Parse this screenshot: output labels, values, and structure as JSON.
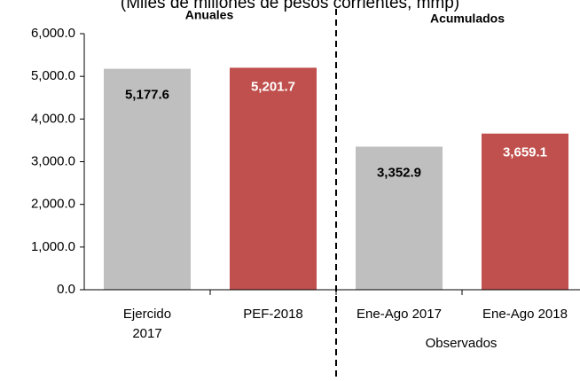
{
  "chart_data": {
    "type": "bar",
    "title": "(Miles de millones de pesos corrientes, mmp)",
    "section_labels": [
      "Anuales",
      "Acumulados"
    ],
    "group_label": "Observados",
    "categories": [
      "Ejercido\n2017",
      "PEF-2018",
      "Ene-Ago 2017",
      "Ene-Ago 2018"
    ],
    "values": [
      5177.6,
      5201.7,
      3352.9,
      3659.1
    ],
    "value_labels": [
      "5,177.6",
      "5,201.7",
      "3,352.9",
      "3,659.1"
    ],
    "colors": [
      "#bfbfbf",
      "#c0504d",
      "#bfbfbf",
      "#c0504d"
    ],
    "value_label_colors": [
      "#000000",
      "#ffffff",
      "#000000",
      "#ffffff"
    ],
    "ylim": [
      0,
      6000
    ],
    "yticks": [
      {
        "value": 0,
        "label": "0.0"
      },
      {
        "value": 1000,
        "label": "1,000.0"
      },
      {
        "value": 2000,
        "label": "2,000.0"
      },
      {
        "value": 3000,
        "label": "3,000.0"
      },
      {
        "value": 4000,
        "label": "4,000.0"
      },
      {
        "value": 5000,
        "label": "5,000.0"
      },
      {
        "value": 6000,
        "label": "6,000.0"
      }
    ]
  }
}
